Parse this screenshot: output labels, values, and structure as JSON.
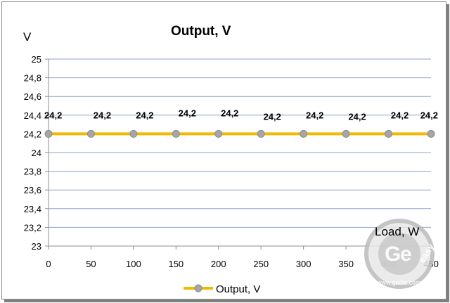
{
  "chart_data": {
    "type": "line",
    "title": "Output, V",
    "ylabel": "V",
    "xlabel": "Load, W",
    "x": [
      0,
      50,
      100,
      150,
      200,
      250,
      300,
      350,
      400,
      450
    ],
    "xlim": [
      0,
      450
    ],
    "ylim": [
      23,
      25
    ],
    "y_ticks": [
      "23",
      "23,2",
      "23,4",
      "23,6",
      "23,8",
      "24",
      "24,2",
      "24,4",
      "24,6",
      "24,8",
      "25"
    ],
    "x_ticks": [
      "0",
      "50",
      "100",
      "150",
      "200",
      "250",
      "300",
      "350",
      "400",
      "450"
    ],
    "grid": "horizontal",
    "legend_position": "bottom",
    "series": [
      {
        "name": "Output, V",
        "values": [
          24.2,
          24.2,
          24.2,
          24.2,
          24.2,
          24.2,
          24.2,
          24.2,
          24.2,
          24.2
        ],
        "labels": [
          "24,2",
          "24,2",
          "24,2",
          "24,2",
          "24,2",
          "24,2",
          "24,2",
          "24,2",
          "24,2",
          "24,2"
        ],
        "line_color": "#f5b800",
        "marker_color": "#a6a6a6"
      }
    ],
    "gridline_color": "#8fa2c8",
    "watermark": "GLOBAL easy www.gecid.com"
  }
}
